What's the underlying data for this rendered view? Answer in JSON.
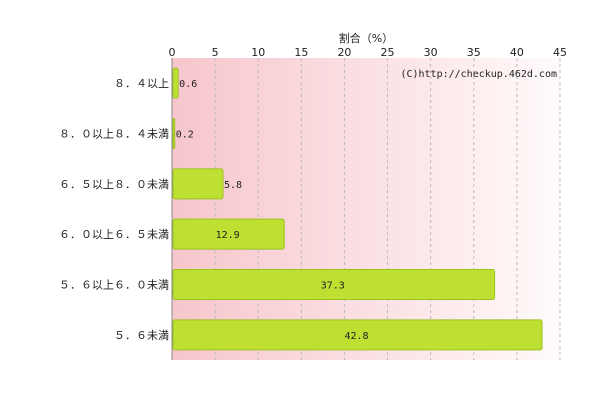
{
  "chart_data": {
    "type": "bar",
    "orientation": "horizontal",
    "xlabel": "割合（%）",
    "xlim": [
      0,
      45
    ],
    "xticks": [
      0,
      5,
      10,
      15,
      20,
      25,
      30,
      35,
      40,
      45
    ],
    "categories": [
      "８．４以上",
      "８．０以上８．４未満",
      "６．５以上８．０未満",
      "６．０以上６．５未満",
      "５．６以上６．０未満",
      "５．６未満"
    ],
    "values": [
      0.6,
      0.2,
      5.8,
      12.9,
      37.3,
      42.8
    ],
    "value_labels": [
      "0.6",
      "0.2",
      "5.8",
      "12.9",
      "37.3",
      "42.8"
    ],
    "credit": "(C)http://checkup.462d.com",
    "grid": true,
    "colors": {
      "bar": "#bde032",
      "bar_stroke": "#9cc21e",
      "bg_left": "#f6c6cc",
      "bg_right": "#fffafa",
      "grid": "#bbbbbb"
    }
  }
}
